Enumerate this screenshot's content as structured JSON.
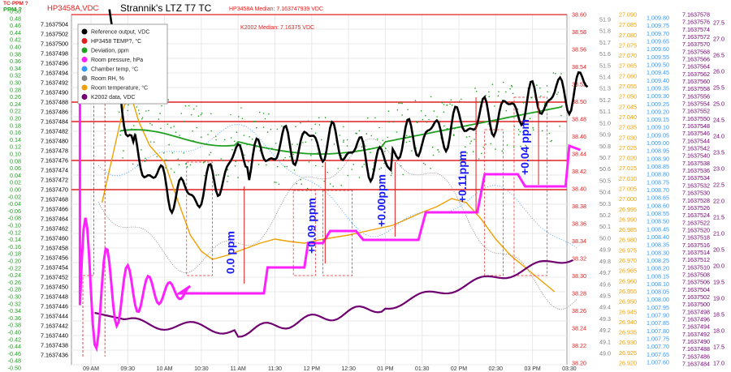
{
  "chart_data": {
    "type": "line",
    "title": "Strannik's LTZ T7 TC",
    "header_left": "HP3458A,VDC",
    "corner_label_top": "TC-PPM ?",
    "corner_label_sub": "PPM ?",
    "median_hp": "HP3458A Median: 7.163747939 VDC",
    "median_k2002": "K2002 Median: 7.16375 VDC",
    "legend": [
      {
        "name": "Reference output, VDC",
        "color": "#000000"
      },
      {
        "name": "HP3458 TEMP?, °C",
        "color": "#e02020"
      },
      {
        "name": "Deviation, ppm",
        "color": "#20a020"
      },
      {
        "name": "Room pressure, hPa",
        "color": "#ff20ff"
      },
      {
        "name": "Chamber temp, °C",
        "color": "#3399ff"
      },
      {
        "name": "Room RH, %",
        "color": "#808080"
      },
      {
        "name": "Room temperature, °C",
        "color": "#f0a000"
      },
      {
        "name": "K2002 data, VDC",
        "color": "#700070"
      }
    ],
    "x_ticks": [
      "09 AM",
      "09:30",
      "10 AM",
      "10:30",
      "11 AM",
      "11:30",
      "12 PM",
      "12:30",
      "01 PM",
      "01:30",
      "02 PM",
      "02:30",
      "03 PM",
      "03:30"
    ],
    "axis_ppm": {
      "color": "#20a020",
      "ticks": [
        "0.50",
        "0.48",
        "0.46",
        "0.44",
        "0.42",
        "0.40",
        "0.38",
        "0.36",
        "0.34",
        "0.32",
        "0.30",
        "0.28",
        "0.26",
        "0.24",
        "0.22",
        "0.20",
        "0.18",
        "0.16",
        "0.14",
        "0.12",
        "0.10",
        "0.08",
        "0.06",
        "0.04",
        "0.02",
        "0.00",
        "-0.02",
        "-0.04",
        "-0.06",
        "-0.08",
        "-0.10",
        "-0.12",
        "-0.14",
        "-0.16",
        "-0.18",
        "-0.20",
        "-0.22",
        "-0.24",
        "-0.26",
        "-0.28",
        "-0.30",
        "-0.32",
        "-0.34",
        "-0.36",
        "-0.38",
        "-0.40",
        "-0.42",
        "-0.44",
        "-0.46",
        "-0.48",
        "-0.50"
      ]
    },
    "axis_vdc": {
      "color": "#000000",
      "ticks": [
        "7.1637504",
        "7.1637502",
        "7.1637500",
        "7.1637498",
        "7.1637496",
        "7.1637494",
        "7.1637492",
        "7.1637490",
        "7.1637488",
        "7.1637486",
        "7.1637484",
        "7.1637482",
        "7.1637480",
        "7.1637478",
        "7.1637476",
        "7.1637474",
        "7.1637472",
        "7.1637470",
        "7.1637468",
        "7.1637466",
        "7.1637464",
        "7.1637462",
        "7.1637460",
        "7.1637458",
        "7.1637456",
        "7.1637454",
        "7.1637452",
        "7.1637450",
        "7.1637448",
        "7.1637446",
        "7.1637444",
        "7.1637442",
        "7.1637440",
        "7.1637438",
        "7.1637436"
      ]
    },
    "axis_hp_temp": {
      "color": "#e02020",
      "ticks": [
        "38.60",
        "38.58",
        "38.56",
        "38.54",
        "38.52",
        "38.50",
        "38.48",
        "38.46",
        "38.44",
        "38.42",
        "38.40",
        "38.38",
        "38.36",
        "38.34",
        "38.32",
        "38.30",
        "38.28",
        "38.26",
        "38.24",
        "38.22",
        "38.20"
      ]
    },
    "axis_rh": {
      "color": "#808080",
      "ticks": [
        "51.9",
        "51.8",
        "51.7",
        "51.6",
        "51.5",
        "51.4",
        "51.3",
        "51.2",
        "51.1",
        "51.0",
        "50.9",
        "50.8",
        "50.7",
        "50.6",
        "50.5",
        "50.4",
        "50.3",
        "50.2",
        "50.1",
        "50.0",
        "49.9",
        "49.8",
        "49.7",
        "49.6",
        "49.5",
        "49.4",
        "49.3",
        "49.2",
        "49.1",
        "49.0"
      ]
    },
    "axis_room_temp": {
      "color": "#f0a000",
      "ticks": [
        "27.090",
        "27.085",
        "27.080",
        "27.075",
        "27.070",
        "27.065",
        "27.060",
        "27.055",
        "27.050",
        "27.045",
        "27.040",
        "27.035",
        "27.030",
        "27.025",
        "27.020",
        "27.015",
        "27.010",
        "27.005",
        "27.000",
        "26.995",
        "26.990",
        "26.985",
        "26.980",
        "26.975",
        "26.970",
        "26.965",
        "26.960",
        "26.955",
        "26.950",
        "26.945",
        "26.940",
        "26.935",
        "26.930",
        "26.925",
        "26.920"
      ]
    },
    "axis_pressure": {
      "color": "#3399ff",
      "ticks": [
        "1,009.80",
        "1,009.75",
        "1,009.70",
        "1,009.65",
        "1,009.60",
        "1,009.55",
        "1,009.50",
        "1,009.45",
        "1,009.40",
        "1,009.35",
        "1,009.30",
        "1,009.25",
        "1,009.20",
        "1,009.15",
        "1,009.10",
        "1,009.05",
        "1,009.00",
        "1,008.95",
        "1,008.90",
        "1,008.85",
        "1,008.80",
        "1,008.75",
        "1,008.70",
        "1,008.65",
        "1,008.60",
        "1,008.55",
        "1,008.50",
        "1,008.45",
        "1,008.40",
        "1,008.35",
        "1,008.30",
        "1,008.25",
        "1,008.20",
        "1,008.15",
        "1,008.10",
        "1,008.05",
        "1,008.00",
        "1,007.95",
        "1,007.90",
        "1,007.85",
        "1,007.80",
        "1,007.75",
        "1,007.70",
        "1,007.65",
        "1,007.60"
      ]
    },
    "axis_k2002": {
      "color": "#700070",
      "ticks": [
        "7.1637578",
        "7.1637576",
        "7.1637574",
        "7.1637572",
        "7.1637570",
        "7.1637568",
        "7.1637566",
        "7.1637564",
        "7.1637562",
        "7.1637560",
        "7.1637558",
        "7.1637556",
        "7.1637554",
        "7.1637552",
        "7.1637550",
        "7.1637548",
        "7.1637546",
        "7.1637544",
        "7.1637542",
        "7.1637540",
        "7.1637538",
        "7.1637536",
        "7.1637534",
        "7.1637532",
        "7.1637530",
        "7.1637528",
        "7.1637526",
        "7.1637524",
        "7.1637522",
        "7.1637520",
        "7.1637518",
        "7.1637516",
        "7.1637514",
        "7.1637512",
        "7.1637510",
        "7.1637508",
        "7.1637506",
        "7.1637504",
        "7.1637502",
        "7.1637500",
        "7.1637498",
        "7.1637496",
        "7.1637494",
        "7.1637492",
        "7.1637490",
        "7.1637488",
        "7.1637486",
        "7.1637484"
      ]
    },
    "axis_chamber_temp": {
      "color": "#700070",
      "ticks": [
        "27.5",
        "27.0",
        "26.5",
        "26.0",
        "25.5",
        "25.0",
        "24.5",
        "24.0",
        "23.5",
        "23.0",
        "22.5",
        "22.0",
        "21.5",
        "21.0",
        "20.5",
        "20.0",
        "19.5",
        "19.0",
        "18.5",
        "18.0",
        "17.5",
        "17.0"
      ]
    },
    "annotations": [
      {
        "text": "0.0 ppm"
      },
      {
        "text": "+0.09 ppm"
      },
      {
        "text": "+0.00ppm"
      },
      {
        "text": "+0.11ppm"
      },
      {
        "text": "+0.04 ppm"
      }
    ],
    "steps_ppm": [
      0.0,
      0.09,
      0.0,
      0.11,
      0.04
    ],
    "ref_levels_vdc": [
      7.1637488,
      7.1637484,
      7.1637476,
      7.163747
    ],
    "grid": true,
    "legend_position": "top-left"
  }
}
